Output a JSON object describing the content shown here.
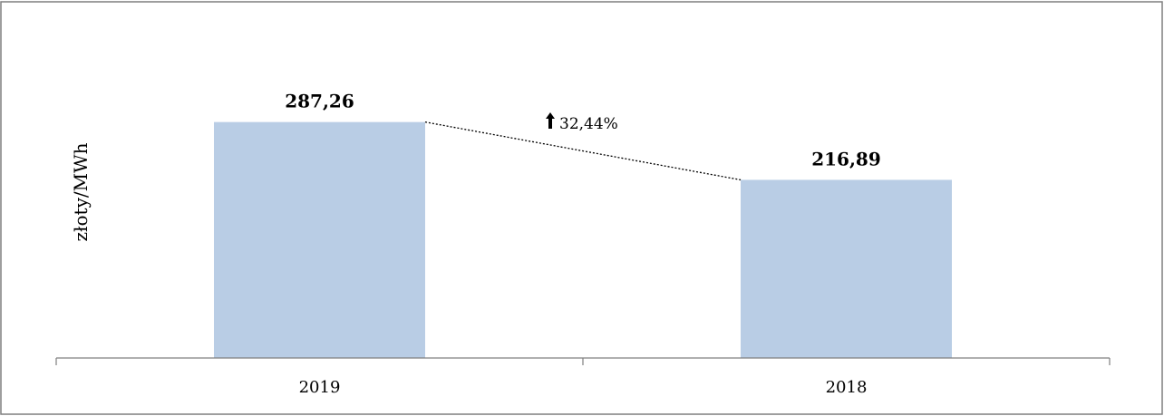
{
  "chart_data": {
    "type": "bar",
    "categories": [
      "2019",
      "2018"
    ],
    "values": [
      287.26,
      216.89
    ],
    "value_labels": [
      "287,26",
      "216,89"
    ],
    "ylabel": "złoty/MWh",
    "ylim": [
      0,
      320
    ],
    "grid": false,
    "annotation": {
      "text": "32,44%",
      "icon": "up-arrow-icon"
    },
    "colors": {
      "bar": "#b9cde5",
      "frame": "#7f7f7f"
    }
  }
}
